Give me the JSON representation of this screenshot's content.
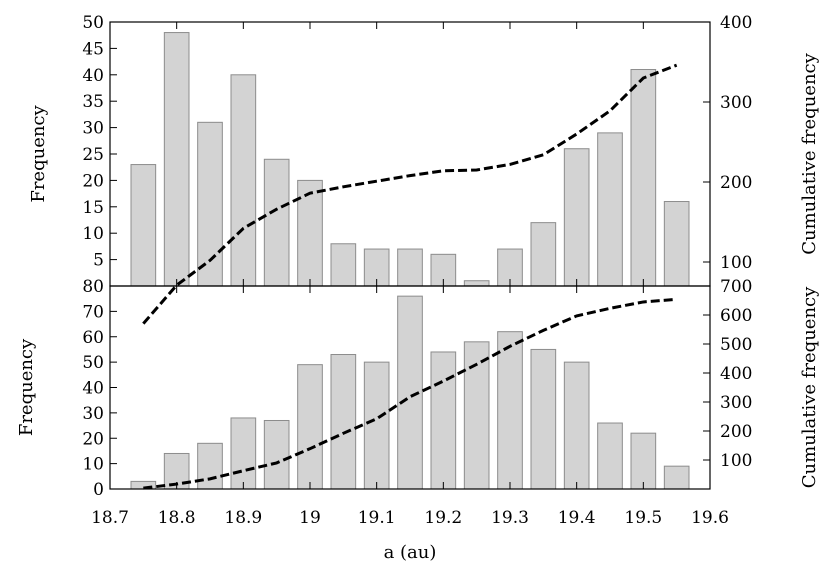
{
  "chart_data": [
    {
      "type": "bar",
      "panel": "top",
      "ylabel": "Frequency",
      "y2label": "Cumulative frequency",
      "xlim": [
        18.7,
        19.6
      ],
      "ylim": [
        0,
        50
      ],
      "y2lim": [
        70,
        400
      ],
      "yticks": [
        5,
        10,
        15,
        20,
        25,
        30,
        35,
        40,
        45,
        50
      ],
      "y2ticks": [
        100,
        200,
        300,
        400
      ],
      "bin_width": 0.05,
      "x": [
        18.75,
        18.8,
        18.85,
        18.9,
        18.95,
        19.0,
        19.05,
        19.1,
        19.15,
        19.2,
        19.25,
        19.3,
        19.35,
        19.4,
        19.45,
        19.5,
        19.55
      ],
      "values": [
        23,
        48,
        31,
        40,
        24,
        20,
        8,
        7,
        7,
        6,
        1,
        7,
        12,
        26,
        29,
        41,
        16
      ],
      "cumulative": {
        "x": [
          18.75,
          18.8,
          18.85,
          18.9,
          18.95,
          19.0,
          19.05,
          19.1,
          19.15,
          19.2,
          19.25,
          19.3,
          19.35,
          19.4,
          19.45,
          19.5,
          19.55
        ],
        "values": [
          23,
          71,
          102,
          142,
          166,
          186,
          194,
          201,
          208,
          214,
          215,
          222,
          234,
          260,
          289,
          330,
          346
        ]
      }
    },
    {
      "type": "bar",
      "panel": "bottom",
      "ylabel": "Frequency",
      "y2label": "Cumulative frequency",
      "xlabel": "a (au)",
      "xlim": [
        18.7,
        19.6
      ],
      "xticks": [
        18.7,
        18.8,
        18.9,
        19,
        19.1,
        19.2,
        19.3,
        19.4,
        19.5,
        19.6
      ],
      "ylim": [
        0,
        80
      ],
      "y2lim": [
        0,
        700
      ],
      "yticks": [
        0,
        10,
        20,
        30,
        40,
        50,
        60,
        70,
        80
      ],
      "y2ticks": [
        100,
        200,
        300,
        400,
        500,
        600,
        700
      ],
      "bin_width": 0.05,
      "x": [
        18.75,
        18.8,
        18.85,
        18.9,
        18.95,
        19.0,
        19.05,
        19.1,
        19.15,
        19.2,
        19.25,
        19.3,
        19.35,
        19.4,
        19.45,
        19.5,
        19.55
      ],
      "values": [
        3,
        14,
        18,
        28,
        27,
        49,
        53,
        50,
        76,
        54,
        58,
        62,
        55,
        50,
        26,
        22,
        9
      ],
      "cumulative": {
        "x": [
          18.75,
          18.8,
          18.85,
          18.9,
          18.95,
          19.0,
          19.05,
          19.1,
          19.15,
          19.2,
          19.25,
          19.3,
          19.35,
          19.4,
          19.45,
          19.5,
          19.55
        ],
        "values": [
          3,
          17,
          35,
          63,
          90,
          139,
          192,
          242,
          318,
          372,
          430,
          492,
          547,
          597,
          623,
          645,
          654
        ]
      }
    }
  ]
}
